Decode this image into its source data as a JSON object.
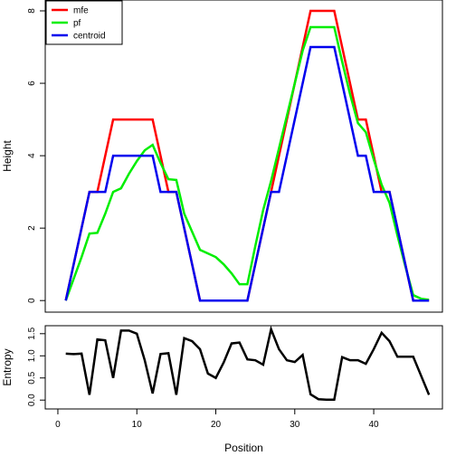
{
  "chart_data": [
    {
      "type": "line",
      "ylabel": "Height",
      "x": [
        1,
        2,
        3,
        4,
        5,
        6,
        7,
        8,
        9,
        10,
        11,
        12,
        13,
        14,
        15,
        16,
        17,
        18,
        19,
        20,
        21,
        22,
        23,
        24,
        25,
        26,
        27,
        28,
        29,
        30,
        31,
        32,
        33,
        34,
        35,
        36,
        37,
        38,
        39,
        40,
        41,
        42,
        43,
        44,
        45,
        46,
        47
      ],
      "series": [
        {
          "name": "mfe",
          "color": "#ff0000",
          "values": [
            0,
            1,
            2,
            3,
            3,
            4,
            5,
            5,
            5,
            5,
            5,
            5,
            4,
            3,
            3,
            2,
            1,
            0,
            0,
            0,
            0,
            0,
            0,
            0,
            1,
            2,
            3,
            4,
            5,
            6,
            7,
            8,
            8,
            8,
            8,
            7,
            6,
            5,
            5,
            4,
            3,
            3,
            2,
            1,
            0,
            0,
            0
          ]
        },
        {
          "name": "pf",
          "color": "#00ee00",
          "values": [
            0,
            0.6,
            1.2,
            1.85,
            1.87,
            2.4,
            3.0,
            3.1,
            3.5,
            3.85,
            4.15,
            4.3,
            3.8,
            3.35,
            3.33,
            2.4,
            1.9,
            1.4,
            1.3,
            1.2,
            1.0,
            0.75,
            0.45,
            0.45,
            1.5,
            2.5,
            3.3,
            4.2,
            5.1,
            6.0,
            6.9,
            7.55,
            7.55,
            7.55,
            7.55,
            6.6,
            5.7,
            4.9,
            4.65,
            3.9,
            3.2,
            2.7,
            1.8,
            0.95,
            0.15,
            0.05,
            0.02
          ]
        },
        {
          "name": "centroid",
          "color": "#0000ee",
          "values": [
            0,
            1,
            2,
            3,
            3,
            3,
            4,
            4,
            4,
            4,
            4,
            4,
            3,
            3,
            3,
            2,
            1,
            0,
            0,
            0,
            0,
            0,
            0,
            0,
            1,
            2,
            3,
            3,
            4,
            5,
            6,
            7,
            7,
            7,
            7,
            6,
            5,
            4,
            4,
            3,
            3,
            3,
            2,
            1,
            0,
            0,
            0
          ]
        }
      ],
      "xlim": [
        -1.6,
        48.7
      ],
      "ylim": [
        -0.32,
        8.3
      ],
      "yticks": [
        0,
        2,
        4,
        6,
        8
      ],
      "legend": "top-left"
    },
    {
      "type": "line",
      "xlabel": "Position",
      "ylabel": "Entropy",
      "x": [
        1,
        2,
        3,
        4,
        5,
        6,
        7,
        8,
        9,
        10,
        11,
        12,
        13,
        14,
        15,
        16,
        17,
        18,
        19,
        20,
        21,
        22,
        23,
        24,
        25,
        26,
        27,
        28,
        29,
        30,
        31,
        32,
        33,
        34,
        35,
        36,
        37,
        38,
        39,
        40,
        41,
        42,
        43,
        44,
        45,
        46,
        47
      ],
      "values": [
        1.05,
        1.04,
        1.05,
        0.12,
        1.37,
        1.35,
        0.5,
        1.57,
        1.57,
        1.5,
        0.9,
        0.15,
        1.04,
        1.06,
        0.12,
        1.4,
        1.33,
        1.15,
        0.6,
        0.5,
        0.85,
        1.28,
        1.3,
        0.92,
        0.9,
        0.8,
        1.6,
        1.15,
        0.9,
        0.86,
        1.02,
        0.13,
        0.02,
        0.01,
        0.01,
        0.97,
        0.9,
        0.9,
        0.82,
        1.15,
        1.52,
        1.33,
        0.98,
        0.98,
        0.98,
        0.55,
        0.12
      ],
      "color": "#000000",
      "xlim": [
        -1.6,
        48.7
      ],
      "xticks": [
        0,
        10,
        20,
        30,
        40
      ],
      "ylim": [
        -0.2,
        1.68
      ],
      "yticks": [
        {
          "value": 0,
          "label": "0.0"
        },
        {
          "value": 0.5,
          "label": "0.5"
        },
        {
          "value": 1,
          "label": "1.0"
        },
        {
          "value": 1.5,
          "label": "1.5"
        }
      ]
    }
  ]
}
